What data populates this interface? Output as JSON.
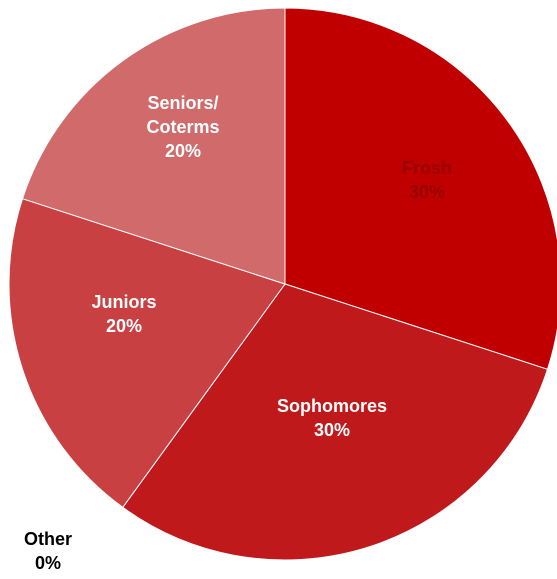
{
  "chart_data": {
    "type": "pie",
    "title": "",
    "start_angle_deg": 0,
    "direction": "clockwise",
    "legend": "none",
    "slices": [
      {
        "label": [
          "Frosh"
        ],
        "pct_text": "30%",
        "value": 30,
        "color": "#C00000",
        "label_color": "#9a0000"
      },
      {
        "label": [
          "Sophomores"
        ],
        "pct_text": "30%",
        "value": 30,
        "color": "#C0191C",
        "label_color": "#ffffff"
      },
      {
        "label": [
          "Juniors"
        ],
        "pct_text": "20%",
        "value": 20,
        "color": "#C94042",
        "label_color": "#ffffff"
      },
      {
        "label": [
          "Other"
        ],
        "pct_text": "0%",
        "value": 0,
        "color": "#CC5456",
        "label_color": "#000000"
      },
      {
        "label": [
          "Seniors/",
          "Coterms"
        ],
        "pct_text": "20%",
        "value": 20,
        "color": "#D06A6B",
        "label_color": "#ffffff"
      }
    ]
  }
}
